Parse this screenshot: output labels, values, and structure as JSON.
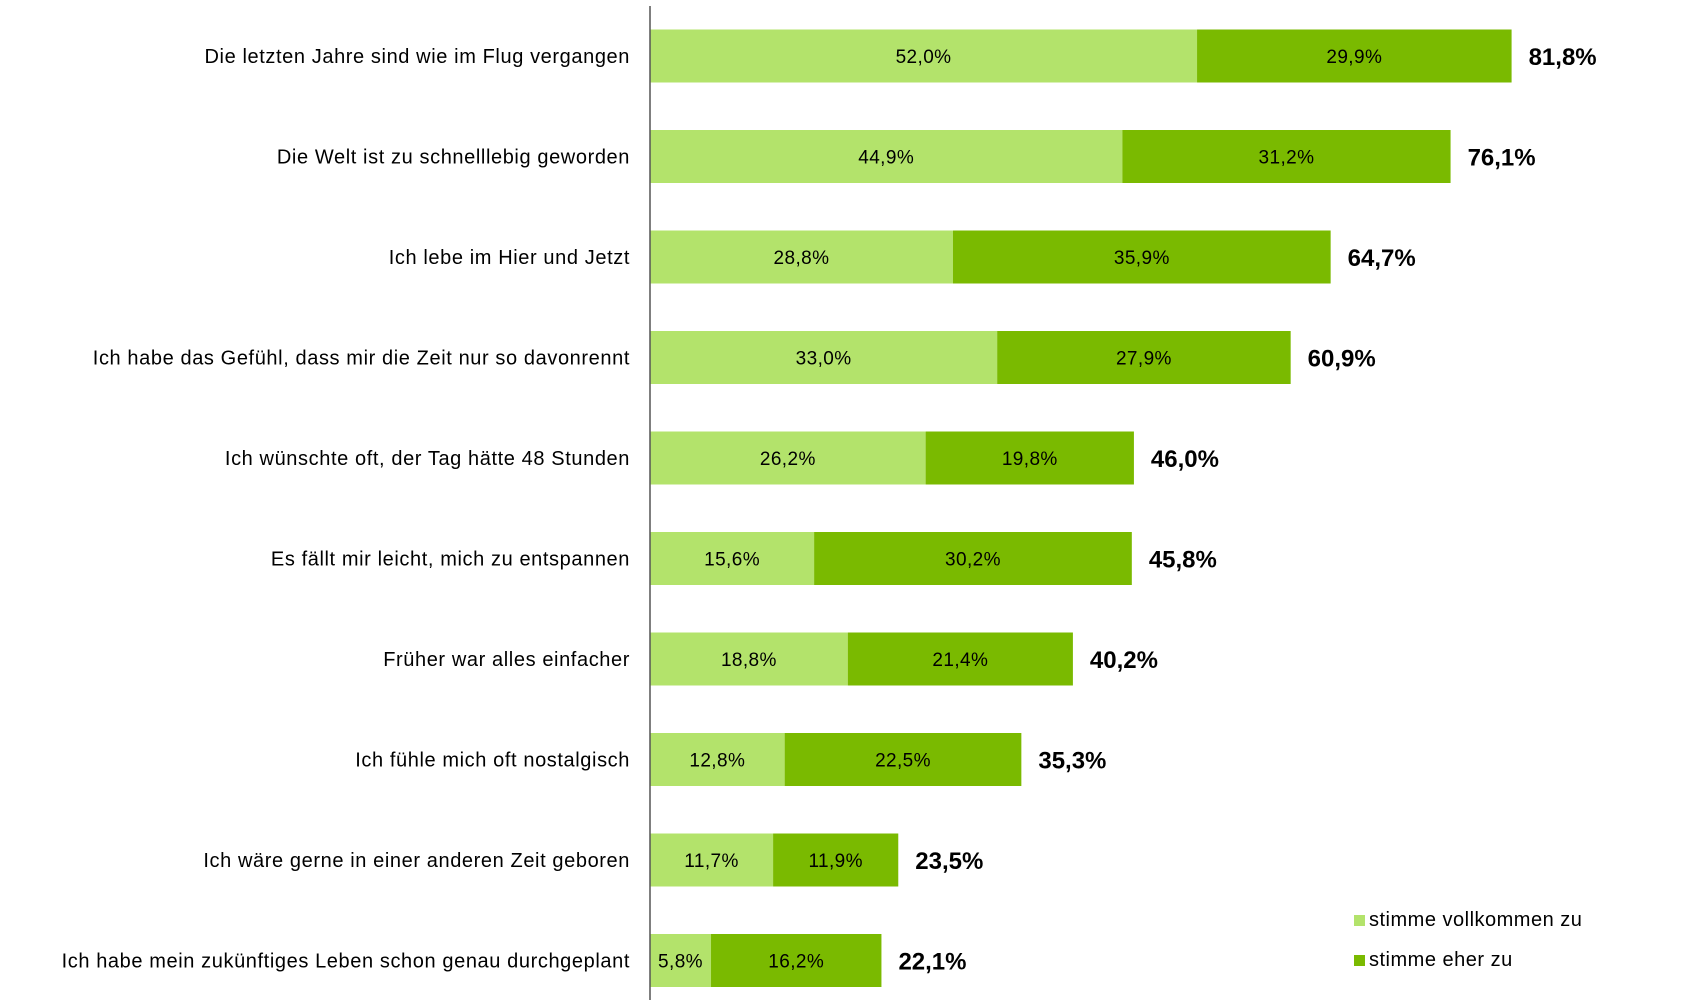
{
  "chart_data": {
    "type": "bar",
    "orientation": "horizontal",
    "stacked": true,
    "categories": [
      "Die letzten Jahre sind wie im Flug vergangen",
      "Die Welt ist zu schnelllebig geworden",
      "Ich lebe im Hier und Jetzt",
      "Ich habe das Gefühl, dass mir die Zeit nur so davonrennt",
      "Ich wünschte oft, der Tag hätte 48 Stunden",
      "Es fällt mir leicht, mich zu entspannen",
      "Früher war alles einfacher",
      "Ich fühle mich oft nostalgisch",
      "Ich wäre gerne in einer anderen Zeit geboren",
      "Ich habe mein zukünftiges Leben schon genau durchgeplant"
    ],
    "series": [
      {
        "name": "stimme vollkommen zu",
        "color": "#b3e36b",
        "values": [
          52.0,
          44.9,
          28.8,
          33.0,
          26.2,
          15.6,
          18.8,
          12.8,
          11.7,
          5.8
        ],
        "labels": [
          "52,0%",
          "44,9%",
          "28,8%",
          "33,0%",
          "26,2%",
          "15,6%",
          "18,8%",
          "12,8%",
          "11,7%",
          "5,8%"
        ]
      },
      {
        "name": "stimme eher zu",
        "color": "#7aba00",
        "values": [
          29.9,
          31.2,
          35.9,
          27.9,
          19.8,
          30.2,
          21.4,
          22.5,
          11.9,
          16.2
        ],
        "labels": [
          "29,9%",
          "31,2%",
          "35,9%",
          "27,9%",
          "19,8%",
          "30,2%",
          "21,4%",
          "22,5%",
          "11,9%",
          "16,2%"
        ]
      }
    ],
    "totals": [
      81.8,
      76.1,
      64.7,
      60.9,
      46.0,
      45.8,
      40.2,
      35.3,
      23.5,
      22.1
    ],
    "total_labels": [
      "81,8%",
      "76,1%",
      "64,7%",
      "60,9%",
      "46,0%",
      "45,8%",
      "40,2%",
      "35,3%",
      "23,5%",
      "22,1%"
    ],
    "xlim": [
      0,
      100
    ],
    "grid": false,
    "legend_position": "bottom-right"
  }
}
